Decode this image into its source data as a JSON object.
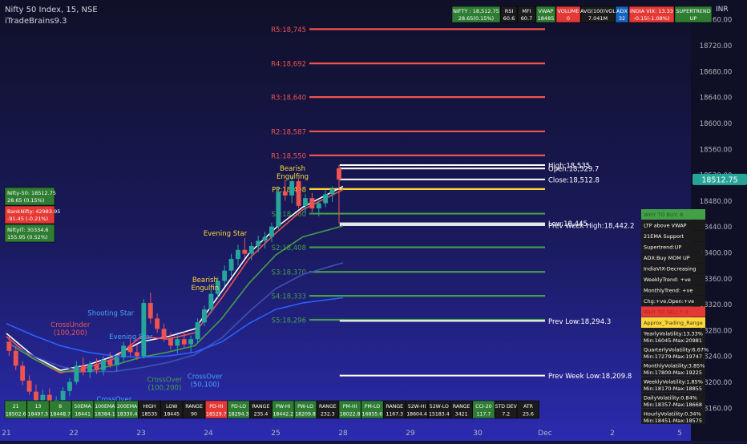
{
  "header": {
    "title": "Nifty 50 Index, 15, NSE",
    "indicator": "iTradeBrains9.3",
    "currency": "INR"
  },
  "top_table": [
    {
      "top": "NIFTY : 18,512.75",
      "bottom": "28.65(0.15%)",
      "bg": "#2e7d32"
    },
    {
      "top": "RSI",
      "bottom": "60.6",
      "bg": "#1b1b1b"
    },
    {
      "top": "MFI",
      "bottom": "60.7",
      "bg": "#1b1b1b"
    },
    {
      "top": "VWAP",
      "bottom": "18485",
      "bg": "#2e7d32"
    },
    {
      "top": "VOLUME",
      "bottom": "0",
      "bg": "#e53935"
    },
    {
      "top": "AVG(100)VOL",
      "bottom": "7.041M",
      "bg": "#1b1b1b"
    },
    {
      "top": "ADX",
      "bottom": "32",
      "bg": "#1565c0"
    },
    {
      "top": "INDIA VIX: 13.33",
      "bottom": "-0.15(-1.08%)",
      "bg": "#e53935"
    },
    {
      "top": "SUPERTREND",
      "bottom": "UP",
      "bg": "#2e7d32"
    }
  ],
  "left_panel": [
    {
      "l1": "Nifty-50: 18512.75",
      "l2": "28.65 (0.15%)",
      "bg": "#2e7d32"
    },
    {
      "l1": "BankNifty: 42983.95",
      "l2": "-91.45 (-0.21%)",
      "bg": "#e53935"
    },
    {
      "l1": "NiftyIT: 30334.6",
      "l2": "155.95 (0.52%)",
      "bg": "#2e7d32"
    }
  ],
  "right_panel": [
    {
      "text": "WHY TO BUY: 8",
      "bg": "#43a047",
      "fg": "#1b5e20"
    },
    {
      "text": "LTP above VWAP",
      "bg": "#1b1b1b",
      "fg": "#ffffff"
    },
    {
      "text": "21EMA Support",
      "bg": "#1b1b1b",
      "fg": "#ffffff"
    },
    {
      "text": "Supertrend:UP",
      "bg": "#1b1b1b",
      "fg": "#ffffff"
    },
    {
      "text": "ADX:Buy MOM UP",
      "bg": "#1b1b1b",
      "fg": "#ffffff"
    },
    {
      "text": "IndiaVIX-Decreasing",
      "bg": "#1b1b1b",
      "fg": "#ffffff"
    },
    {
      "text": "WeeklyTrend: +ve",
      "bg": "#1b1b1b",
      "fg": "#ffffff"
    },
    {
      "text": "MonthlyTrend: +ve",
      "bg": "#1b1b1b",
      "fg": "#ffffff"
    },
    {
      "text": "Chg:+ve,Open:+ve",
      "bg": "#1b1b1b",
      "fg": "#ffffff"
    },
    {
      "text": "WHY TO SELL?: 0",
      "bg": "#e53935",
      "fg": "#b71c1c"
    },
    {
      "text": "Approx_Trading_Range",
      "bg": "#fdd835",
      "fg": "#333333"
    },
    {
      "text": "YearlyVolatility:13.33%",
      "text2": "Min:16045-Max:20981",
      "bg": "#1b1b1b",
      "fg": "#ffffff"
    },
    {
      "text": "QuarterlyVolatility:6.67%",
      "text2": "Min:17279-Max:19747",
      "bg": "#1b1b1b",
      "fg": "#ffffff"
    },
    {
      "text": "MonthlyVolatility:3.85%",
      "text2": "Min:17800-Max:19225",
      "bg": "#1b1b1b",
      "fg": "#ffffff"
    },
    {
      "text": "WeeklyVolatility:1.85%",
      "text2": "Min:18170-Max:18855",
      "bg": "#1b1b1b",
      "fg": "#ffffff"
    },
    {
      "text": "DailyVolatility:0.84%",
      "text2": "Min:18357-Max:18668",
      "bg": "#1b1b1b",
      "fg": "#ffffff"
    },
    {
      "text": "HourlyVolatility:0.34%",
      "text2": "Min:18451-Max:18575",
      "bg": "#1b1b1b",
      "fg": "#ffffff"
    }
  ],
  "bottom_table": [
    {
      "top": "21",
      "bottom": "18502.6",
      "bg": "#2e7d32"
    },
    {
      "top": "13",
      "bottom": "18497.5",
      "bg": "#2e7d32"
    },
    {
      "top": "8",
      "bottom": "18448.7",
      "bg": "#2e7d32"
    },
    {
      "top": "50EMA",
      "bottom": "18441",
      "bg": "#2e7d32"
    },
    {
      "top": "100EMA",
      "bottom": "18384.1",
      "bg": "#2e7d32"
    },
    {
      "top": "200EMA",
      "bottom": "18330.4",
      "bg": "#2e7d32"
    },
    {
      "top": "HIGH",
      "bottom": "18535",
      "bg": "#1b1b1b"
    },
    {
      "top": "LOW",
      "bottom": "18445",
      "bg": "#1b1b1b"
    },
    {
      "top": "RANGE",
      "bottom": "90",
      "bg": "#1b1b1b"
    },
    {
      "top": "PD-HI",
      "bottom": "18529.7",
      "bg": "#e53935"
    },
    {
      "top": "PD-LO",
      "bottom": "18294.3",
      "bg": "#2e7d32"
    },
    {
      "top": "RANGE",
      "bottom": "235.4",
      "bg": "#1b1b1b"
    },
    {
      "top": "PW-HI",
      "bottom": "18442.2",
      "bg": "#2e7d32"
    },
    {
      "top": "PW-LO",
      "bottom": "18209.8",
      "bg": "#2e7d32"
    },
    {
      "top": "RANGE",
      "bottom": "232.3",
      "bg": "#1b1b1b"
    },
    {
      "top": "PM-HI",
      "bottom": "18022.8",
      "bg": "#2e7d32"
    },
    {
      "top": "PM-LO",
      "bottom": "16855.6",
      "bg": "#2e7d32"
    },
    {
      "top": "RANGE",
      "bottom": "1167.3",
      "bg": "#1b1b1b"
    },
    {
      "top": "52W-HI",
      "bottom": "18604.4",
      "bg": "#1b1b1b"
    },
    {
      "top": "52W-LO",
      "bottom": "15183.4",
      "bg": "#1b1b1b"
    },
    {
      "top": "RANGE",
      "bottom": "3421",
      "bg": "#1b1b1b"
    },
    {
      "top": "CCI-20",
      "bottom": "117.7",
      "bg": "#2e7d32"
    },
    {
      "top": "STD DEV",
      "bottom": "7.2",
      "bg": "#1b1b1b"
    },
    {
      "top": "ATR",
      "bottom": "25.6",
      "bg": "#1b1b1b"
    }
  ],
  "last_price_badge": "18512.75",
  "chart_data": {
    "type": "candlestick",
    "title": "Nifty 50 Index, 15, NSE",
    "y_axis": {
      "ticks": [
        18160,
        18200,
        18240,
        18280,
        18320,
        18360,
        18400,
        18440,
        18480,
        18520,
        18560,
        18600,
        18640,
        18680,
        18720,
        18760
      ],
      "range": [
        18140,
        18790
      ],
      "side": "right"
    },
    "x_axis": {
      "labels": [
        "21",
        "22",
        "23",
        "24",
        "25",
        "28",
        "29",
        "30",
        "Dec",
        "2",
        "5"
      ],
      "range": [
        0,
        10
      ]
    },
    "levels": [
      {
        "label": "R5:18,745",
        "value": 18745,
        "color": "#ef5350",
        "label_side": "left"
      },
      {
        "label": "R4:18,692",
        "value": 18692,
        "color": "#ef5350",
        "label_side": "left"
      },
      {
        "label": "R3:18,640",
        "value": 18640,
        "color": "#ef5350",
        "label_side": "left"
      },
      {
        "label": "R2:18,587",
        "value": 18587,
        "color": "#ef5350",
        "label_side": "left"
      },
      {
        "label": "R1:18,550",
        "value": 18550,
        "color": "#ef5350",
        "label_side": "left"
      },
      {
        "label": "PP:18,498",
        "value": 18498,
        "color": "#fdd835",
        "label_side": "left"
      },
      {
        "label": "S1:18,460",
        "value": 18460,
        "color": "#43a047",
        "label_side": "left"
      },
      {
        "label": "S2:18,408",
        "value": 18408,
        "color": "#43a047",
        "label_side": "left"
      },
      {
        "label": "S3:18,370",
        "value": 18370,
        "color": "#43a047",
        "label_side": "left"
      },
      {
        "label": "S4:18,333",
        "value": 18333,
        "color": "#43a047",
        "label_side": "left"
      },
      {
        "label": "S5:18,296",
        "value": 18296,
        "color": "#43a047",
        "label_side": "left"
      },
      {
        "label": "High:18,535",
        "value": 18535,
        "color": "#ffffff",
        "label_side": "right"
      },
      {
        "label": "Open:18,529.7",
        "value": 18529.7,
        "color": "#ffffff",
        "label_side": "right"
      },
      {
        "label": "Close:18,512.8",
        "value": 18512.8,
        "color": "#ffffff",
        "label_side": "right"
      },
      {
        "label": "Low:18,445",
        "value": 18445,
        "color": "#ffffff",
        "label_side": "right"
      },
      {
        "label": "Prev Week High:18,442.2",
        "value": 18442.2,
        "color": "#ffffff",
        "label_side": "right"
      },
      {
        "label": "Prev Low:18,294.3",
        "value": 18294.3,
        "color": "#ffffff",
        "label_side": "right"
      },
      {
        "label": "Prev Week Low:18,209.8",
        "value": 18209.8,
        "color": "#ffffff",
        "label_side": "right"
      }
    ],
    "annotations": [
      {
        "text": "CrossUnder",
        "text2": "(100,200)",
        "x": 0.95,
        "y": 18285,
        "color": "#ef5350"
      },
      {
        "text": "Shooting Star",
        "text2": "",
        "x": 1.55,
        "y": 18303,
        "color": "#42a5f5"
      },
      {
        "text": "Evening Star",
        "text2": "",
        "x": 1.85,
        "y": 18266,
        "color": "#42a5f5"
      },
      {
        "text": "CrossOver",
        "text2": "(100,200)",
        "x": 2.35,
        "y": 18200,
        "color": "#43a047"
      },
      {
        "text": "CrossOver",
        "text2": "(50,100)",
        "x": 2.95,
        "y": 18205,
        "color": "#42a5f5"
      },
      {
        "text": "CrossOver",
        "text2": "",
        "x": 1.6,
        "y": 18170,
        "color": "#42a5f5"
      },
      {
        "text": "Bearish",
        "text2": "Engulfin",
        "x": 2.95,
        "y": 18354,
        "color": "#fdd835"
      },
      {
        "text": "Evening Star",
        "text2": "",
        "x": 3.25,
        "y": 18426,
        "color": "#fdd835"
      },
      {
        "text": "Bearish",
        "text2": "Engulfing",
        "x": 4.25,
        "y": 18526,
        "color": "#fdd835"
      }
    ],
    "candles": [
      {
        "x": 0.04,
        "o": 18262,
        "h": 18270,
        "l": 18240,
        "c": 18248
      },
      {
        "x": 0.14,
        "o": 18248,
        "h": 18255,
        "l": 18218,
        "c": 18225
      },
      {
        "x": 0.24,
        "o": 18225,
        "h": 18232,
        "l": 18195,
        "c": 18202
      },
      {
        "x": 0.34,
        "o": 18202,
        "h": 18210,
        "l": 18180,
        "c": 18185
      },
      {
        "x": 0.44,
        "o": 18185,
        "h": 18196,
        "l": 18168,
        "c": 18172
      },
      {
        "x": 0.54,
        "o": 18172,
        "h": 18188,
        "l": 18160,
        "c": 18180
      },
      {
        "x": 0.64,
        "o": 18180,
        "h": 18190,
        "l": 18150,
        "c": 18158
      },
      {
        "x": 0.74,
        "o": 18158,
        "h": 18178,
        "l": 18150,
        "c": 18172
      },
      {
        "x": 0.84,
        "o": 18172,
        "h": 18192,
        "l": 18160,
        "c": 18186
      },
      {
        "x": 0.94,
        "o": 18186,
        "h": 18206,
        "l": 18178,
        "c": 18200
      },
      {
        "x": 1.04,
        "o": 18200,
        "h": 18232,
        "l": 18196,
        "c": 18225
      },
      {
        "x": 1.14,
        "o": 18225,
        "h": 18238,
        "l": 18210,
        "c": 18215
      },
      {
        "x": 1.24,
        "o": 18215,
        "h": 18232,
        "l": 18206,
        "c": 18228
      },
      {
        "x": 1.34,
        "o": 18228,
        "h": 18236,
        "l": 18212,
        "c": 18218
      },
      {
        "x": 1.44,
        "o": 18218,
        "h": 18240,
        "l": 18210,
        "c": 18234
      },
      {
        "x": 1.54,
        "o": 18234,
        "h": 18246,
        "l": 18222,
        "c": 18226
      },
      {
        "x": 1.64,
        "o": 18226,
        "h": 18242,
        "l": 18216,
        "c": 18238
      },
      {
        "x": 1.74,
        "o": 18238,
        "h": 18262,
        "l": 18232,
        "c": 18256
      },
      {
        "x": 1.84,
        "o": 18256,
        "h": 18268,
        "l": 18240,
        "c": 18246
      },
      {
        "x": 1.94,
        "o": 18246,
        "h": 18258,
        "l": 18234,
        "c": 18240
      },
      {
        "x": 2.04,
        "o": 18240,
        "h": 18328,
        "l": 18236,
        "c": 18322
      },
      {
        "x": 2.14,
        "o": 18322,
        "h": 18338,
        "l": 18290,
        "c": 18298
      },
      {
        "x": 2.24,
        "o": 18298,
        "h": 18306,
        "l": 18276,
        "c": 18282
      },
      {
        "x": 2.34,
        "o": 18282,
        "h": 18290,
        "l": 18262,
        "c": 18268
      },
      {
        "x": 2.44,
        "o": 18268,
        "h": 18276,
        "l": 18250,
        "c": 18256
      },
      {
        "x": 2.54,
        "o": 18256,
        "h": 18272,
        "l": 18244,
        "c": 18266
      },
      {
        "x": 2.64,
        "o": 18266,
        "h": 18278,
        "l": 18252,
        "c": 18258
      },
      {
        "x": 2.74,
        "o": 18258,
        "h": 18272,
        "l": 18246,
        "c": 18266
      },
      {
        "x": 2.84,
        "o": 18266,
        "h": 18298,
        "l": 18260,
        "c": 18292
      },
      {
        "x": 2.94,
        "o": 18292,
        "h": 18318,
        "l": 18286,
        "c": 18312
      },
      {
        "x": 3.04,
        "o": 18312,
        "h": 18342,
        "l": 18306,
        "c": 18336
      },
      {
        "x": 3.14,
        "o": 18336,
        "h": 18362,
        "l": 18328,
        "c": 18356
      },
      {
        "x": 3.24,
        "o": 18356,
        "h": 18380,
        "l": 18348,
        "c": 18372
      },
      {
        "x": 3.34,
        "o": 18372,
        "h": 18398,
        "l": 18364,
        "c": 18390
      },
      {
        "x": 3.44,
        "o": 18390,
        "h": 18412,
        "l": 18380,
        "c": 18404
      },
      {
        "x": 3.54,
        "o": 18404,
        "h": 18422,
        "l": 18392,
        "c": 18398
      },
      {
        "x": 3.64,
        "o": 18398,
        "h": 18416,
        "l": 18388,
        "c": 18410
      },
      {
        "x": 3.74,
        "o": 18410,
        "h": 18426,
        "l": 18400,
        "c": 18418
      },
      {
        "x": 3.84,
        "o": 18418,
        "h": 18432,
        "l": 18406,
        "c": 18424
      },
      {
        "x": 3.94,
        "o": 18424,
        "h": 18446,
        "l": 18416,
        "c": 18440
      },
      {
        "x": 4.04,
        "o": 18440,
        "h": 18500,
        "l": 18436,
        "c": 18494
      },
      {
        "x": 4.14,
        "o": 18494,
        "h": 18512,
        "l": 18480,
        "c": 18488
      },
      {
        "x": 4.24,
        "o": 18488,
        "h": 18518,
        "l": 18476,
        "c": 18510
      },
      {
        "x": 4.34,
        "o": 18510,
        "h": 18514,
        "l": 18468,
        "c": 18472
      },
      {
        "x": 4.44,
        "o": 18472,
        "h": 18490,
        "l": 18460,
        "c": 18484
      },
      {
        "x": 4.54,
        "o": 18484,
        "h": 18492,
        "l": 18462,
        "c": 18468
      },
      {
        "x": 4.64,
        "o": 18468,
        "h": 18480,
        "l": 18456,
        "c": 18476
      },
      {
        "x": 4.74,
        "o": 18476,
        "h": 18496,
        "l": 18470,
        "c": 18490
      },
      {
        "x": 4.84,
        "o": 18490,
        "h": 18502,
        "l": 18478,
        "c": 18498
      },
      {
        "x": 4.94,
        "o": 18530,
        "h": 18535,
        "l": 18445,
        "c": 18512.75
      }
    ],
    "series": [
      {
        "points": [
          [
            0.0,
            18275
          ],
          [
            0.4,
            18240
          ],
          [
            0.8,
            18218
          ],
          [
            1.2,
            18226
          ],
          [
            1.6,
            18240
          ],
          [
            2.0,
            18262
          ],
          [
            2.4,
            18270
          ],
          [
            2.8,
            18282
          ],
          [
            3.2,
            18340
          ],
          [
            3.6,
            18398
          ],
          [
            4.0,
            18438
          ],
          [
            4.4,
            18470
          ],
          [
            5.0,
            18502
          ]
        ],
        "color": "#ffffff"
      },
      {
        "points": [
          [
            0.0,
            18270
          ],
          [
            0.4,
            18236
          ],
          [
            0.8,
            18214
          ],
          [
            1.2,
            18222
          ],
          [
            1.6,
            18236
          ],
          [
            2.0,
            18270
          ],
          [
            2.4,
            18266
          ],
          [
            2.8,
            18276
          ],
          [
            3.2,
            18330
          ],
          [
            3.6,
            18390
          ],
          [
            4.0,
            18430
          ],
          [
            4.4,
            18466
          ],
          [
            5.0,
            18497
          ]
        ],
        "color": "#ef5350"
      },
      {
        "points": [
          [
            0.0,
            18262
          ],
          [
            0.4,
            18236
          ],
          [
            0.8,
            18216
          ],
          [
            1.2,
            18216
          ],
          [
            1.6,
            18226
          ],
          [
            2.0,
            18238
          ],
          [
            2.4,
            18246
          ],
          [
            2.8,
            18256
          ],
          [
            3.2,
            18298
          ],
          [
            3.6,
            18352
          ],
          [
            4.0,
            18396
          ],
          [
            4.4,
            18424
          ],
          [
            5.0,
            18441
          ]
        ],
        "color": "#43a047"
      },
      {
        "points": [
          [
            0.0,
            18262
          ],
          [
            0.4,
            18240
          ],
          [
            0.8,
            18224
          ],
          [
            1.2,
            18216
          ],
          [
            1.6,
            18216
          ],
          [
            2.0,
            18222
          ],
          [
            2.4,
            18230
          ],
          [
            2.8,
            18242
          ],
          [
            3.2,
            18268
          ],
          [
            3.6,
            18308
          ],
          [
            4.0,
            18344
          ],
          [
            4.4,
            18366
          ],
          [
            5.0,
            18384
          ]
        ],
        "color": "#3f51b5"
      },
      {
        "points": [
          [
            0.0,
            18290
          ],
          [
            0.4,
            18272
          ],
          [
            0.8,
            18256
          ],
          [
            1.2,
            18246
          ],
          [
            1.6,
            18240
          ],
          [
            2.0,
            18238
          ],
          [
            2.4,
            18240
          ],
          [
            2.8,
            18246
          ],
          [
            3.2,
            18262
          ],
          [
            3.6,
            18290
          ],
          [
            4.0,
            18312
          ],
          [
            4.4,
            18322
          ],
          [
            5.0,
            18330
          ]
        ],
        "color": "#2962ff"
      }
    ]
  }
}
